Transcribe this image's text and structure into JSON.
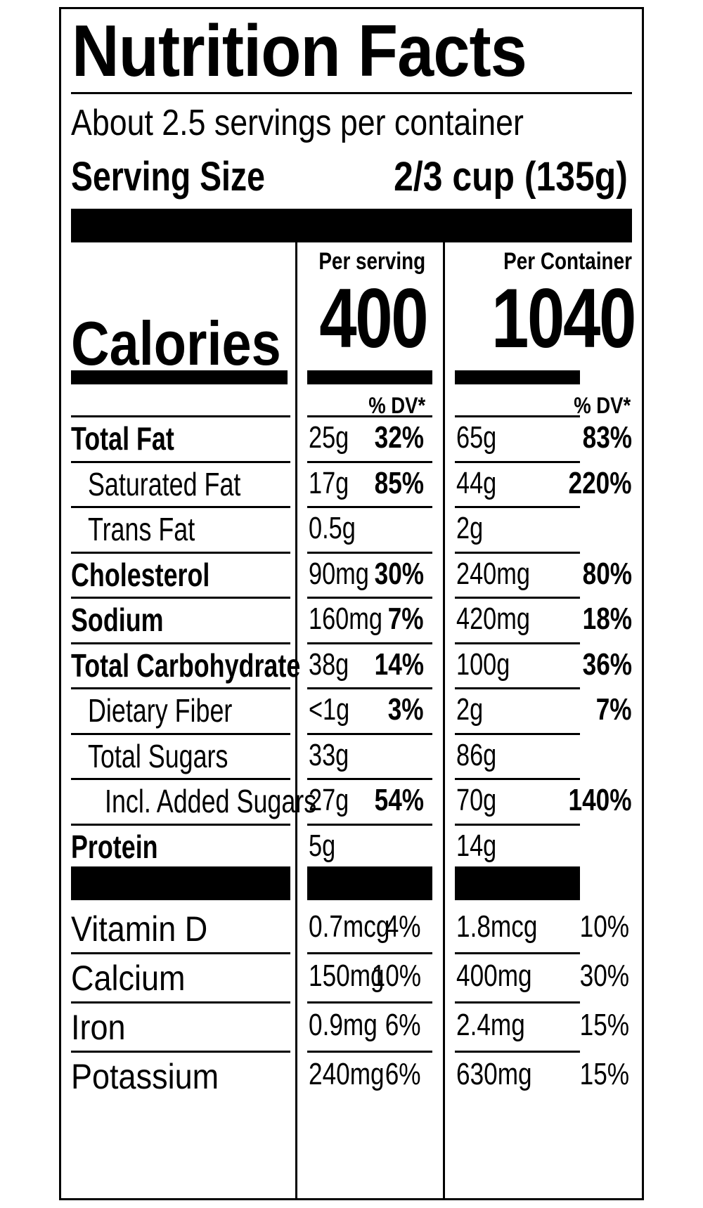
{
  "title": "Nutrition Facts",
  "servings_per_container": "About 2.5 servings per container",
  "serving_size_label": "Serving Size",
  "serving_size_value": "2/3 cup (135g)",
  "columns": {
    "per_serving": "Per serving",
    "per_container": "Per Container"
  },
  "calories": {
    "label": "Calories",
    "per_serving": "400",
    "per_container": "1040"
  },
  "dv_header": "% DV*",
  "nutrients": [
    {
      "name": "Total Fat",
      "bold": true,
      "indent": 0,
      "serving_amount": "25g",
      "serving_dv": "32%",
      "container_amount": "65g",
      "container_dv": "83%"
    },
    {
      "name": "Saturated Fat",
      "bold": false,
      "indent": 1,
      "serving_amount": "17g",
      "serving_dv": "85%",
      "container_amount": "44g",
      "container_dv": "220%"
    },
    {
      "name": "Trans Fat",
      "bold": false,
      "indent": 1,
      "serving_amount": "0.5g",
      "serving_dv": "",
      "container_amount": "2g",
      "container_dv": ""
    },
    {
      "name": "Cholesterol",
      "bold": true,
      "indent": 0,
      "serving_amount": "90mg",
      "serving_dv": "30%",
      "container_amount": "240mg",
      "container_dv": "80%"
    },
    {
      "name": "Sodium",
      "bold": true,
      "indent": 0,
      "serving_amount": "160mg",
      "serving_dv": "7%",
      "container_amount": "420mg",
      "container_dv": "18%"
    },
    {
      "name": "Total Carbohydrate",
      "bold": true,
      "indent": 0,
      "serving_amount": "38g",
      "serving_dv": "14%",
      "container_amount": "100g",
      "container_dv": "36%"
    },
    {
      "name": "Dietary Fiber",
      "bold": false,
      "indent": 1,
      "serving_amount": "<1g",
      "serving_dv": "3%",
      "container_amount": "2g",
      "container_dv": "7%"
    },
    {
      "name": "Total Sugars",
      "bold": false,
      "indent": 1,
      "serving_amount": "33g",
      "serving_dv": "",
      "container_amount": "86g",
      "container_dv": ""
    },
    {
      "name": "Incl. Added Sugars",
      "bold": false,
      "indent": 2,
      "serving_amount": "27g",
      "serving_dv": "54%",
      "container_amount": "70g",
      "container_dv": "140%"
    },
    {
      "name": "Protein",
      "bold": true,
      "indent": 0,
      "serving_amount": "5g",
      "serving_dv": "",
      "container_amount": "14g",
      "container_dv": ""
    }
  ],
  "vitamins": [
    {
      "name": "Vitamin D",
      "serving_amount": "0.7mcg",
      "serving_dv": "4%",
      "container_amount": "1.8mcg",
      "container_dv": "10%"
    },
    {
      "name": "Calcium",
      "serving_amount": "150mg",
      "serving_dv": "10%",
      "container_amount": "400mg",
      "container_dv": "30%"
    },
    {
      "name": "Iron",
      "serving_amount": "0.9mg",
      "serving_dv": "6%",
      "container_amount": "2.4mg",
      "container_dv": "15%"
    },
    {
      "name": "Potassium",
      "serving_amount": "240mg",
      "serving_dv": "6%",
      "container_amount": "630mg",
      "container_dv": "15%"
    }
  ]
}
